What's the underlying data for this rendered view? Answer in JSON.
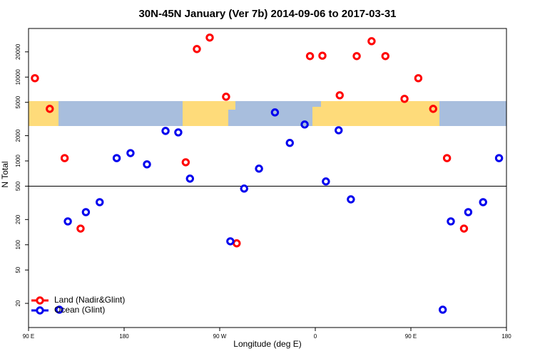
{
  "chart_data": {
    "type": "scatter",
    "title": "30N-45N January (Ver 7b)   2014-09-06 to 2017-03-31",
    "xlabel": "Longitude (deg E)",
    "ylabel": "N Total",
    "xlim": [
      90,
      540
    ],
    "xticks": [
      {
        "value": 90,
        "label": "90 E"
      },
      {
        "value": 180,
        "label": "180"
      },
      {
        "value": 270,
        "label": "90 W"
      },
      {
        "value": 360,
        "label": "0"
      },
      {
        "value": 450,
        "label": "90 E"
      },
      {
        "value": 540,
        "label": "180"
      }
    ],
    "ylim": [
      10.3,
      38000
    ],
    "ylog": true,
    "yticks": [
      20,
      50,
      100,
      200,
      500,
      1000,
      2000,
      5000,
      10000,
      20000
    ],
    "hline": 500,
    "legend": "bottom-left",
    "series": [
      {
        "name": "Land (Nadir&Glint)",
        "color": "#ff0000",
        "x": [
          96,
          110,
          124,
          139,
          238,
          248.5,
          260.6,
          276,
          286,
          355,
          366.7,
          383,
          399,
          413,
          426,
          444,
          457,
          471,
          484,
          500
        ],
        "values": [
          9700,
          4180,
          1080,
          156,
          964,
          21600,
          29600,
          5830,
          104,
          17800,
          18000,
          6070,
          17800,
          26800,
          17800,
          5500,
          9700,
          4180,
          1080,
          156
        ]
      },
      {
        "name": "Ocean (Glint)",
        "color": "#0000ee",
        "x": [
          119,
          127,
          144,
          157,
          173,
          186,
          201.5,
          219,
          231,
          242,
          280,
          293,
          307,
          322,
          336,
          350,
          370,
          382,
          393.5,
          480,
          487.6,
          504,
          518,
          533
        ],
        "values": [
          16.8,
          190,
          245,
          322,
          1080,
          1240,
          910,
          2280,
          2190,
          615,
          110,
          468,
          809,
          3790,
          1640,
          2720,
          569,
          2320,
          348,
          16.8,
          190,
          245,
          322,
          1080
        ]
      }
    ]
  }
}
